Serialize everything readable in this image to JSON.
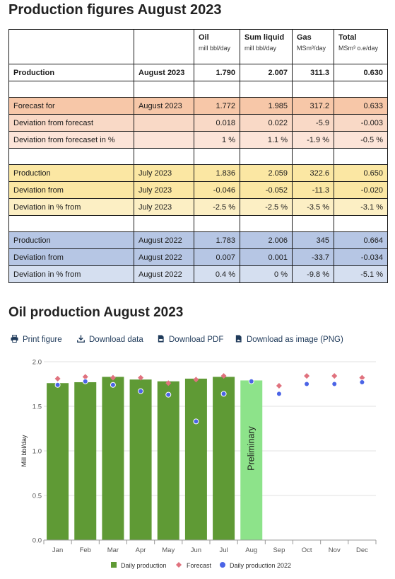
{
  "table_title": "Production figures August 2023",
  "columns": [
    {
      "name": "Oil",
      "unit": "mill bbl/day"
    },
    {
      "name": "Sum liquid",
      "unit": "mill bbl/day"
    },
    {
      "name": "Gas",
      "unit": "MSm³/day"
    },
    {
      "name": "Total",
      "unit": "MSm³ o.e/day"
    }
  ],
  "rows": [
    {
      "label": "Production",
      "period": "August 2023",
      "values": [
        "1.790",
        "2.007",
        "311.3",
        "0.630"
      ]
    },
    {
      "label": "Forecast for",
      "period": "August 2023",
      "values": [
        "1.772",
        "1.985",
        "317.2",
        "0.633"
      ]
    },
    {
      "label": "Deviation from forecast",
      "period": "",
      "values": [
        "0.018",
        "0.022",
        "-5.9",
        "-0.003"
      ]
    },
    {
      "label": "Deviation from forecaset in %",
      "period": "",
      "values": [
        "1 %",
        "1.1 %",
        "-1.9 %",
        "-0.5 %"
      ]
    },
    {
      "label": "Production",
      "period": "July 2023",
      "values": [
        "1.836",
        "2.059",
        "322.6",
        "0.650"
      ]
    },
    {
      "label": "Deviation from",
      "period": "July 2023",
      "values": [
        "-0.046",
        "-0.052",
        "-11.3",
        "-0.020"
      ]
    },
    {
      "label": "Deviation in % from",
      "period": "July 2023",
      "values": [
        "-2.5 %",
        "-2.5 %",
        "-3.5 %",
        "-3.1 %"
      ]
    },
    {
      "label": "Production",
      "period": "August 2022",
      "values": [
        "1.783",
        "2.006",
        "345",
        "0.664"
      ]
    },
    {
      "label": "Deviation from",
      "period": "August 2022",
      "values": [
        "0.007",
        "0.001",
        "-33.7",
        "-0.034"
      ]
    },
    {
      "label": "Deviation in % from",
      "period": "August 2022",
      "values": [
        "0.4 %",
        "0 %",
        "-9.8 %",
        "-5.1 %"
      ]
    }
  ],
  "chart_title": "Oil production August 2023",
  "toolbar": {
    "print": "Print figure",
    "download_data": "Download data",
    "download_pdf": "Download PDF",
    "download_png": "Download as image (PNG)"
  },
  "colors": {
    "bar": "#5f9a35",
    "preliminary_bar": "#8de38a",
    "forecast": "#e0727e",
    "daily_2022": "#4b64e6",
    "toolbar_text": "#1f3a5a"
  },
  "chart_data": {
    "type": "bar",
    "categories": [
      "Jan",
      "Feb",
      "Mar",
      "Apr",
      "May",
      "Jun",
      "Jul",
      "Aug",
      "Sep",
      "Oct",
      "Nov",
      "Dec"
    ],
    "ylabel": "Mill bbl/day",
    "ylim": [
      0,
      2.0
    ],
    "yticks": [
      "0.0",
      "0.5",
      "1.0",
      "1.5",
      "2.0"
    ],
    "grid": true,
    "legend_position": "bottom",
    "bar_annotation": {
      "category": "Aug",
      "text": "Preliminary"
    },
    "series": [
      {
        "name": "Daily production",
        "type": "bar",
        "values": [
          1.76,
          1.77,
          1.83,
          1.8,
          1.78,
          1.81,
          1.83,
          1.79,
          null,
          null,
          null,
          null
        ]
      },
      {
        "name": "Forecast",
        "type": "scatter",
        "marker": "diamond",
        "values": [
          1.81,
          1.83,
          1.82,
          1.82,
          1.76,
          1.8,
          1.84,
          1.78,
          1.73,
          1.84,
          1.84,
          1.82
        ]
      },
      {
        "name": "Daily production 2022",
        "type": "scatter",
        "marker": "circle",
        "values": [
          1.74,
          1.78,
          1.74,
          1.67,
          1.63,
          1.33,
          1.64,
          1.78,
          1.64,
          1.75,
          1.75,
          1.77
        ]
      }
    ]
  }
}
